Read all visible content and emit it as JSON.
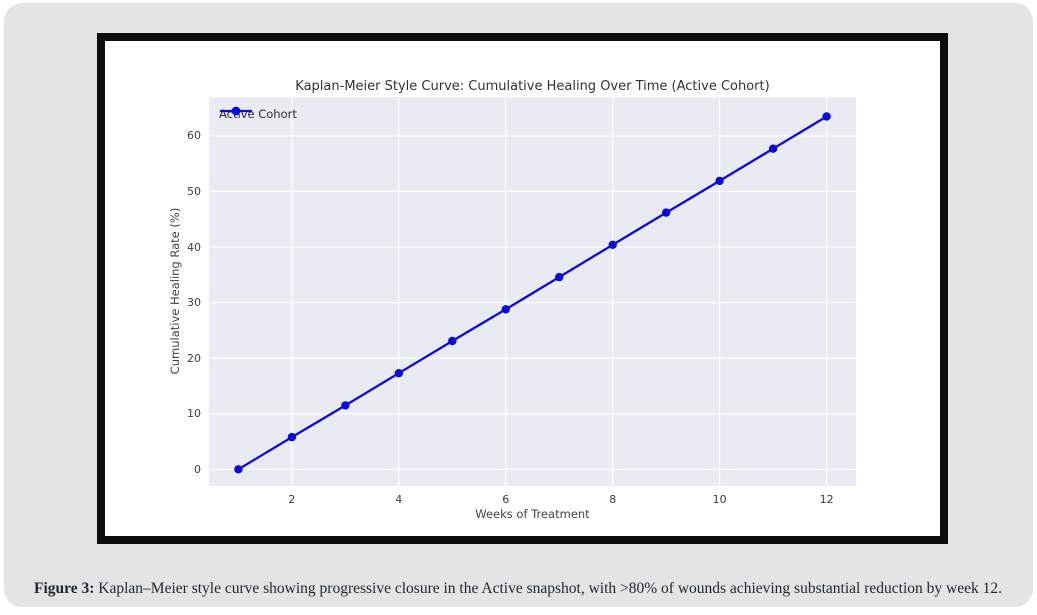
{
  "chart_data": {
    "type": "line",
    "title": "Kaplan-Meier Style Curve: Cumulative Healing Over Time (Active Cohort)",
    "xlabel": "Weeks of Treatment",
    "ylabel": "Cumulative Healing Rate (%)",
    "x": [
      1,
      2,
      3,
      4,
      5,
      6,
      7,
      8,
      9,
      10,
      11,
      12
    ],
    "series": [
      {
        "name": "Active Cohort",
        "color": "#0a0ae0",
        "values": [
          0.0,
          5.8,
          11.5,
          17.3,
          23.1,
          28.8,
          34.6,
          40.4,
          46.2,
          51.9,
          57.7,
          63.5
        ]
      }
    ],
    "xticks": [
      2,
      4,
      6,
      8,
      10,
      12
    ],
    "yticks": [
      0,
      10,
      20,
      30,
      40,
      50,
      60
    ],
    "xlim": [
      0.45,
      12.55
    ],
    "ylim": [
      -3.0,
      67.0
    ],
    "grid": true,
    "grid_color": "#ffffff",
    "plot_bg": "#eaeaf2",
    "legend_position": "upper left",
    "marker": "circle"
  },
  "caption": {
    "label": "Figure 3:",
    "text": "Kaplan–Meier style curve showing progressive closure in the Active snapshot, with >80% of wounds achieving substantial reduction by week 12."
  }
}
